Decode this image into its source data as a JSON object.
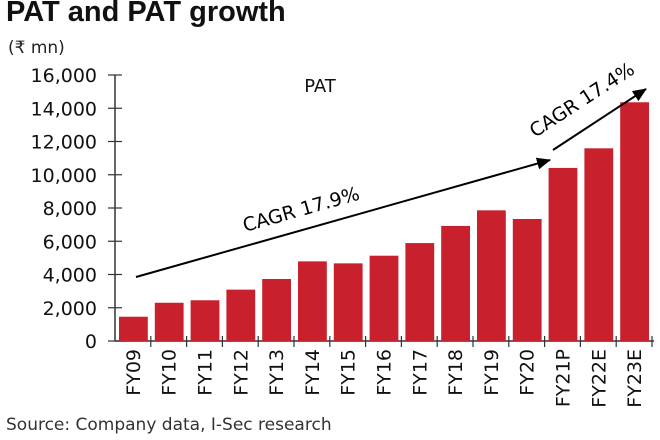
{
  "chart_data": {
    "type": "bar",
    "title": "PAT and PAT growth",
    "ylabel": "(₹ mn)",
    "series_label": "PAT",
    "categories": [
      "FY09",
      "FY10",
      "FY11",
      "FY12",
      "FY13",
      "FY14",
      "FY15",
      "FY16",
      "FY17",
      "FY18",
      "FY19",
      "FY20",
      "FY21P",
      "FY22E",
      "FY23E"
    ],
    "values": [
      1460,
      2300,
      2450,
      3090,
      3730,
      4790,
      4670,
      5130,
      5890,
      6920,
      7860,
      7340,
      10410,
      11590,
      14360
    ],
    "ylim": [
      0,
      16000
    ],
    "yticks": [
      "0",
      "2,000",
      "4,000",
      "6,000",
      "8,000",
      "10,000",
      "12,000",
      "14,000",
      "16,000"
    ],
    "bar_color": "#c8202c",
    "annotations": [
      {
        "text": "CAGR 17.9%",
        "from": "FY09",
        "to": "FY21P"
      },
      {
        "text": "CAGR 17.4%",
        "from": "FY21P",
        "to": "FY23E"
      }
    ],
    "source": "Source: Company data, I-Sec research"
  }
}
